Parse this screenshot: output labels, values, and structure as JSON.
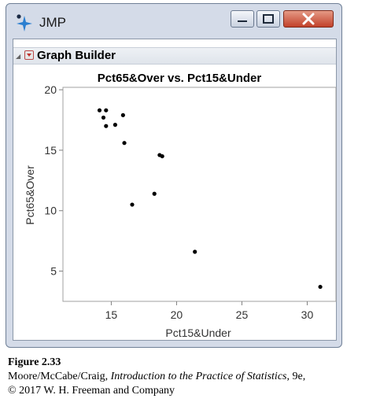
{
  "window": {
    "app_title": "JMP",
    "panel_title": "Graph Builder"
  },
  "chart_data": {
    "type": "scatter",
    "title": "Pct65&Over vs. Pct15&Under",
    "xlabel": "Pct15&Under",
    "ylabel": "Pct65&Over",
    "xlim": [
      11.3,
      32.2
    ],
    "ylim": [
      2.5,
      20.2
    ],
    "xticks": [
      15,
      20,
      25,
      30
    ],
    "yticks": [
      5,
      10,
      15,
      20
    ],
    "grid": false,
    "points": [
      {
        "x": 14.1,
        "y": 18.3
      },
      {
        "x": 14.6,
        "y": 18.3
      },
      {
        "x": 15.9,
        "y": 17.9
      },
      {
        "x": 14.4,
        "y": 17.7
      },
      {
        "x": 14.6,
        "y": 17.0
      },
      {
        "x": 15.3,
        "y": 17.1
      },
      {
        "x": 16.0,
        "y": 15.6
      },
      {
        "x": 18.7,
        "y": 14.6
      },
      {
        "x": 18.9,
        "y": 14.5
      },
      {
        "x": 18.3,
        "y": 11.4
      },
      {
        "x": 16.6,
        "y": 10.5
      },
      {
        "x": 21.4,
        "y": 6.6
      },
      {
        "x": 31.0,
        "y": 3.7
      }
    ],
    "point_color": "#000000"
  },
  "caption": {
    "figure_label": "Figure 2.33",
    "credit_authors": "Moore/McCabe/Craig, ",
    "credit_book": "Introduction to the Practice of Statistics",
    "credit_edition": ", 9e,",
    "copyright": "© 2017 W. H. Freeman and Company"
  }
}
